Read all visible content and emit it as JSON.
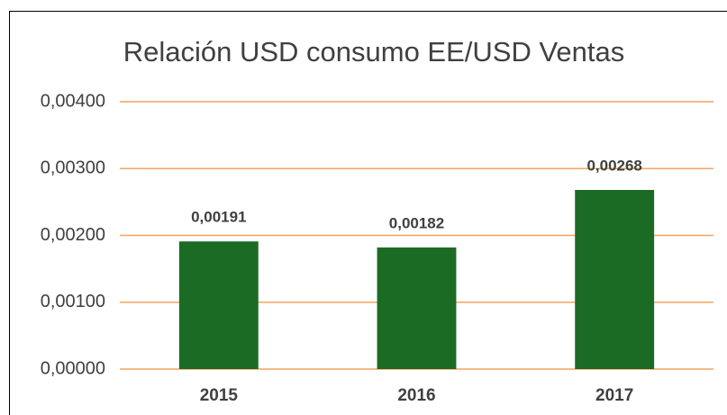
{
  "chart_data": {
    "type": "bar",
    "title": "Relación USD consumo EE/USD Ventas",
    "categories": [
      "2015",
      "2016",
      "2017"
    ],
    "values": [
      0.00191,
      0.00182,
      0.00268
    ],
    "value_labels": [
      "0,00191",
      "0,00182",
      "0,00268"
    ],
    "color": "#1b6b24",
    "ylim": [
      0,
      0.004
    ],
    "yticks": [
      {
        "value": 0,
        "label": "0,00000"
      },
      {
        "value": 0.001,
        "label": "0,00100"
      },
      {
        "value": 0.002,
        "label": "0,00200"
      },
      {
        "value": 0.003,
        "label": "0,00300"
      },
      {
        "value": 0.004,
        "label": "0,00400"
      }
    ],
    "grid": true
  }
}
